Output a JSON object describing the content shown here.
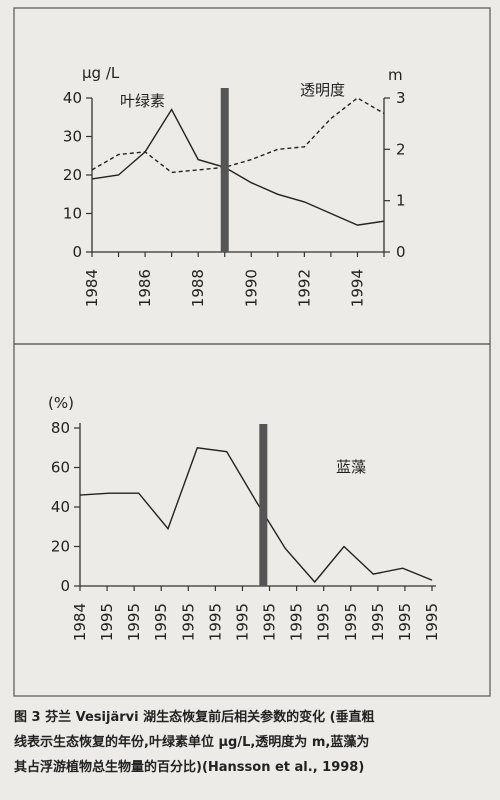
{
  "caption": {
    "lines": [
      "图 3 芬兰 Vesijärvi 湖生态恢复前后相关参数的变化 (垂直粗",
      "线表示生态恢复的年份,叶绿素单位 μg/L,透明度为 m,蓝藻为",
      "其占浮游植物总生物量的百分比)(Hansson et al., 1998)"
    ]
  },
  "chart_data": [
    {
      "type": "line",
      "title": "",
      "left_axis": {
        "unit": "μg /L",
        "ylim": [
          0,
          40
        ],
        "ticks": [
          "0",
          "10",
          "20",
          "30",
          "40"
        ]
      },
      "right_axis": {
        "unit": "m",
        "ylim": [
          0,
          3
        ],
        "ticks": [
          "0",
          "1",
          "2",
          "3"
        ]
      },
      "x_ticks": [
        "1984",
        "1986",
        "1988",
        "1990",
        "1992",
        "1994"
      ],
      "xlim": [
        1984,
        1995
      ],
      "restoration_year": 1989,
      "series": [
        {
          "name": "叶绿素",
          "axis": "left",
          "style": "solid",
          "x": [
            1984,
            1985,
            1986,
            1987,
            1988,
            1989,
            1990,
            1991,
            1992,
            1993,
            1994,
            1995
          ],
          "y": [
            19,
            20,
            26,
            37,
            24,
            22,
            18,
            15,
            13,
            10,
            7,
            8
          ]
        },
        {
          "name": "透明度",
          "axis": "right",
          "style": "dashed",
          "x": [
            1984,
            1985,
            1986,
            1987,
            1988,
            1989,
            1990,
            1991,
            1992,
            1993,
            1994,
            1995
          ],
          "y": [
            1.6,
            1.9,
            1.95,
            1.55,
            1.6,
            1.65,
            1.8,
            2.0,
            2.05,
            2.6,
            3.0,
            2.7
          ]
        }
      ]
    },
    {
      "type": "line",
      "title": "",
      "left_axis": {
        "unit": "(%)",
        "ylim": [
          0,
          80
        ],
        "ticks": [
          "0",
          "20",
          "40",
          "60",
          "80"
        ]
      },
      "x_ticks": [
        "1984",
        "1995",
        "1995",
        "1995",
        "1995",
        "1995",
        "1995",
        "1995",
        "1995",
        "1995",
        "1995",
        "1995",
        "1995",
        "1995"
      ],
      "restoration_index": 6.25,
      "series": [
        {
          "name": "蓝藻",
          "style": "solid",
          "y": [
            46,
            47,
            47,
            29,
            70,
            68,
            43,
            19,
            2,
            20,
            6,
            9,
            3
          ]
        }
      ]
    }
  ]
}
